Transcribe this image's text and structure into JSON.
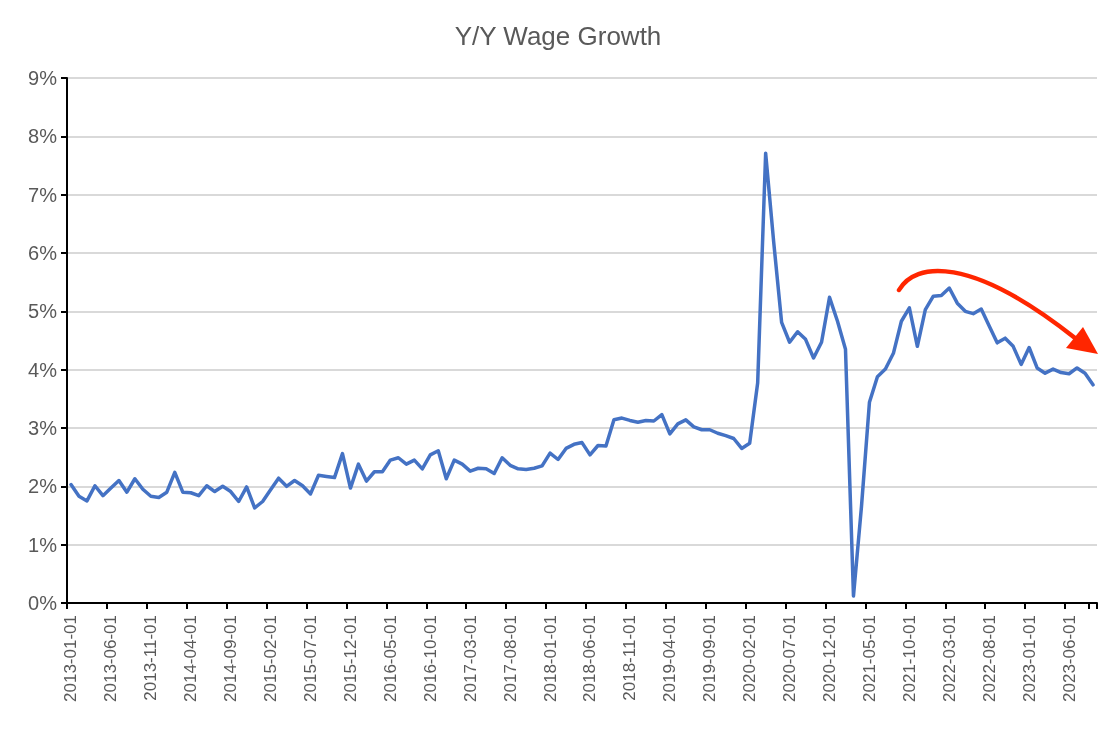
{
  "chart_data": {
    "type": "line",
    "title": "Y/Y Wage Growth",
    "categories": [
      "2013-01-01",
      null,
      null,
      null,
      null,
      "2013-06-01",
      null,
      null,
      null,
      null,
      "2013-11-01",
      null,
      null,
      null,
      null,
      "2014-04-01",
      null,
      null,
      null,
      null,
      "2014-09-01",
      null,
      null,
      null,
      null,
      "2015-02-01",
      null,
      null,
      null,
      null,
      "2015-07-01",
      null,
      null,
      null,
      null,
      "2015-12-01",
      null,
      null,
      null,
      null,
      "2016-05-01",
      null,
      null,
      null,
      null,
      "2016-10-01",
      null,
      null,
      null,
      null,
      "2017-03-01",
      null,
      null,
      null,
      null,
      "2017-08-01",
      null,
      null,
      null,
      null,
      "2018-01-01",
      null,
      null,
      null,
      null,
      "2018-06-01",
      null,
      null,
      null,
      null,
      "2018-11-01",
      null,
      null,
      null,
      null,
      "2019-04-01",
      null,
      null,
      null,
      null,
      "2019-09-01",
      null,
      null,
      null,
      null,
      "2020-02-01",
      null,
      null,
      null,
      null,
      "2020-07-01",
      null,
      null,
      null,
      null,
      "2020-12-01",
      null,
      null,
      null,
      null,
      "2021-05-01",
      null,
      null,
      null,
      null,
      "2021-10-01",
      null,
      null,
      null,
      null,
      "2022-03-01",
      null,
      null,
      null,
      null,
      "2022-08-01",
      null,
      null,
      null,
      null,
      "2023-01-01",
      null,
      null,
      null,
      null,
      "2023-06-01",
      null,
      null,
      null
    ],
    "series": [
      {
        "color": "#4472c4",
        "values": [
          2.03,
          1.83,
          1.75,
          2.01,
          1.84,
          1.97,
          2.1,
          1.9,
          2.13,
          1.95,
          1.83,
          1.81,
          1.9,
          2.24,
          1.9,
          1.89,
          1.84,
          2.01,
          1.91,
          2.0,
          1.91,
          1.74,
          1.99,
          1.63,
          1.74,
          1.94,
          2.14,
          2.0,
          2.1,
          2.01,
          1.87,
          2.19,
          2.17,
          2.15,
          2.56,
          1.97,
          2.38,
          2.09,
          2.25,
          2.25,
          2.45,
          2.49,
          2.38,
          2.45,
          2.3,
          2.54,
          2.61,
          2.13,
          2.45,
          2.38,
          2.26,
          2.31,
          2.3,
          2.22,
          2.49,
          2.36,
          2.3,
          2.29,
          2.31,
          2.35,
          2.57,
          2.46,
          2.65,
          2.72,
          2.75,
          2.54,
          2.7,
          2.69,
          3.14,
          3.17,
          3.13,
          3.1,
          3.13,
          3.12,
          3.23,
          2.9,
          3.07,
          3.14,
          3.02,
          2.97,
          2.97,
          2.91,
          2.87,
          2.82,
          2.65,
          2.74,
          3.77,
          7.71,
          6.2,
          4.81,
          4.47,
          4.65,
          4.52,
          4.2,
          4.47,
          5.24,
          4.83,
          4.35,
          0.12,
          1.65,
          3.44,
          3.88,
          4.01,
          4.28,
          4.83,
          5.06,
          4.4,
          5.03,
          5.26,
          5.27,
          5.4,
          5.14,
          5.0,
          4.96,
          5.04,
          4.75,
          4.46,
          4.54,
          4.4,
          4.09,
          4.38,
          4.03,
          3.94,
          4.01,
          3.95,
          3.93,
          4.03,
          3.94,
          3.74
        ]
      }
    ],
    "ylim": [
      0,
      9
    ],
    "yticks": [
      {
        "value": 0,
        "label": "0%"
      },
      {
        "value": 1,
        "label": "1%"
      },
      {
        "value": 2,
        "label": "2%"
      },
      {
        "value": 3,
        "label": "3%"
      },
      {
        "value": 4,
        "label": "4%"
      },
      {
        "value": 5,
        "label": "5%"
      },
      {
        "value": 6,
        "label": "6%"
      },
      {
        "value": 7,
        "label": "7%"
      },
      {
        "value": 8,
        "label": "8%"
      },
      {
        "value": 9,
        "label": "9%"
      }
    ],
    "grid": "y",
    "marker": "none"
  }
}
